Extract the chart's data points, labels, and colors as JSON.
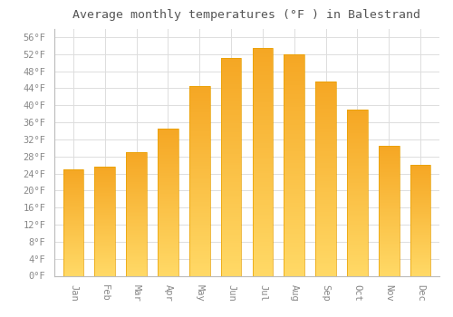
{
  "title": "Average monthly temperatures (°F ) in Balestrand",
  "months": [
    "Jan",
    "Feb",
    "Mar",
    "Apr",
    "May",
    "Jun",
    "Jul",
    "Aug",
    "Sep",
    "Oct",
    "Nov",
    "Dec"
  ],
  "values": [
    25.0,
    25.5,
    29.0,
    34.5,
    44.5,
    51.0,
    53.5,
    52.0,
    45.5,
    39.0,
    30.5,
    26.0
  ],
  "bar_color_top": "#F5A623",
  "bar_color_bottom": "#FFD966",
  "bar_edge_color": "#E8A000",
  "background_color": "#FFFFFF",
  "grid_color": "#DDDDDD",
  "ylim": [
    0,
    58
  ],
  "yticks": [
    0,
    4,
    8,
    12,
    16,
    20,
    24,
    28,
    32,
    36,
    40,
    44,
    48,
    52,
    56
  ],
  "title_fontsize": 9.5,
  "tick_fontsize": 7.5,
  "title_color": "#555555",
  "tick_color": "#888888",
  "bar_width": 0.65
}
